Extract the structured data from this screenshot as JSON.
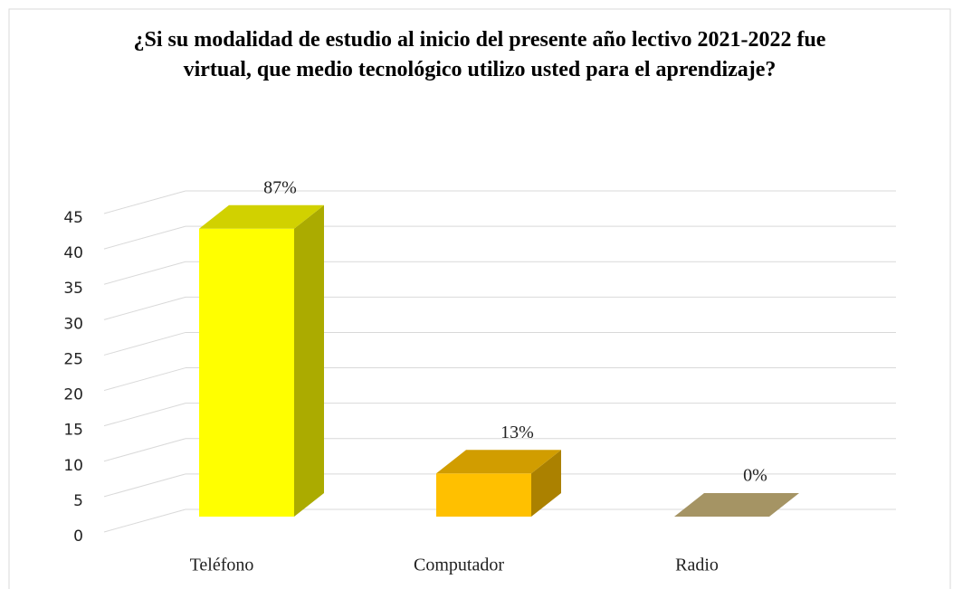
{
  "chart_data": {
    "type": "bar3d",
    "title": "¿Si su modalidad de estudio al inicio del presente año lectivo 2021-2022 fue virtual, que medio tecnológico utilizo usted para el aprendizaje?",
    "categories": [
      "Teléfono",
      "Computador",
      "Radio"
    ],
    "values": [
      40,
      6,
      0
    ],
    "percentages": [
      {
        "value": 87,
        "label": "87%"
      },
      {
        "value": 13,
        "label": "13%"
      },
      {
        "value": 0,
        "label": "0%"
      }
    ],
    "colors": [
      "#ffff00",
      "#ffc000",
      "#c9b47a"
    ],
    "ylim": [
      0,
      45
    ],
    "yticks": [
      0,
      5,
      10,
      15,
      20,
      25,
      30,
      35,
      40,
      45
    ],
    "grid": true
  }
}
